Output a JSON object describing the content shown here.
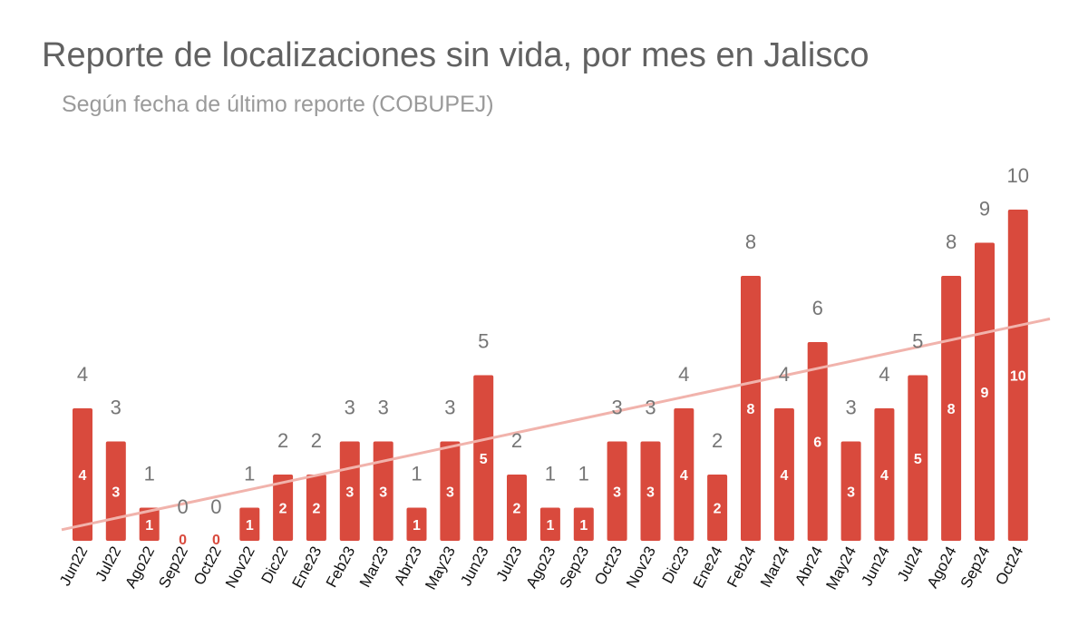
{
  "chart_data": {
    "type": "bar",
    "title": "Reporte de localizaciones sin vida, por mes en Jalisco",
    "subtitle": "Según fecha de último reporte (COBUPEJ)",
    "categories": [
      "Jun22",
      "Jul22",
      "Ago22",
      "Sep22",
      "Oct22",
      "Nov22",
      "Dic22",
      "Ene23",
      "Feb23",
      "Mar23",
      "Abr23",
      "May23",
      "Jun23",
      "Jul23",
      "Ago23",
      "Sep23",
      "Oct23",
      "Nov23",
      "Dic23",
      "Ene24",
      "Feb24",
      "Mar24",
      "Abr24",
      "May24",
      "Jun24",
      "Jul24",
      "Ago24",
      "Sep24",
      "Oct24"
    ],
    "values": [
      4,
      3,
      1,
      0,
      0,
      1,
      2,
      2,
      3,
      3,
      1,
      3,
      5,
      2,
      1,
      1,
      3,
      3,
      4,
      2,
      8,
      4,
      6,
      3,
      4,
      5,
      8,
      9,
      10
    ],
    "trendline": {
      "type": "linear",
      "color": "#f1b3ac"
    },
    "bar_color": "#d94a3d",
    "data_labels": {
      "inside": true,
      "above": true
    },
    "ylim": [
      0,
      10
    ],
    "grid": false,
    "xlabel": "",
    "ylabel": ""
  }
}
